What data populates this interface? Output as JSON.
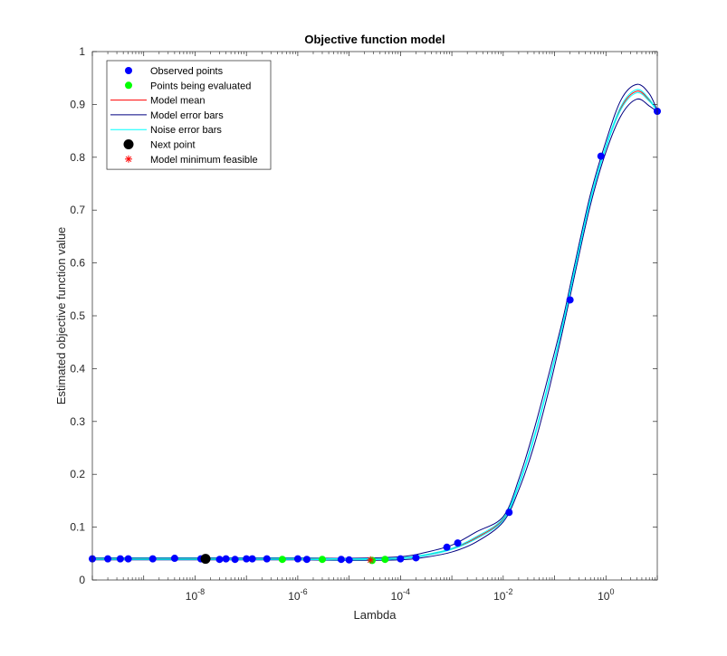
{
  "chart_data": {
    "type": "line",
    "title": "Objective function model",
    "xlabel": "Lambda",
    "ylabel": "Estimated objective function value",
    "xscale": "log",
    "xlim": [
      1e-10,
      10
    ],
    "ylim": [
      0,
      1
    ],
    "yticks": [
      0,
      0.1,
      0.2,
      0.3,
      0.4,
      0.5,
      0.6,
      0.7,
      0.8,
      0.9,
      1
    ],
    "ytick_labels": [
      "0",
      "0.1",
      "0.2",
      "0.3",
      "0.4",
      "0.5",
      "0.6",
      "0.7",
      "0.8",
      "0.9",
      "1"
    ],
    "xticks": [
      {
        "value": 1e-08,
        "base": "10",
        "exp": "-8"
      },
      {
        "value": 1e-06,
        "base": "10",
        "exp": "-6"
      },
      {
        "value": 0.0001,
        "base": "10",
        "exp": "-4"
      },
      {
        "value": 0.01,
        "base": "10",
        "exp": "-2"
      },
      {
        "value": 1,
        "base": "10",
        "exp": "0"
      }
    ],
    "grid": false,
    "legend_position": "top-left",
    "legend": [
      {
        "label": "Observed points",
        "kind": "marker",
        "color": "#0000ff"
      },
      {
        "label": "Points being evaluated",
        "kind": "marker",
        "color": "#00ff00"
      },
      {
        "label": "Model mean",
        "kind": "line",
        "color": "#ff0000"
      },
      {
        "label": "Model error bars",
        "kind": "line",
        "color": "#000080"
      },
      {
        "label": "Noise error bars",
        "kind": "line",
        "color": "#00ffff"
      },
      {
        "label": "Next point",
        "kind": "bigmarker",
        "color": "#000000"
      },
      {
        "label": "Model minimum feasible",
        "kind": "star",
        "color": "#ff0000"
      }
    ],
    "model_mean": [
      [
        1e-10,
        0.04
      ],
      [
        1e-08,
        0.04
      ],
      [
        1e-06,
        0.04
      ],
      [
        1e-05,
        0.039
      ],
      [
        0.0001,
        0.041
      ],
      [
        0.0003,
        0.047
      ],
      [
        0.001,
        0.059
      ],
      [
        0.003,
        0.08
      ],
      [
        0.01,
        0.115
      ],
      [
        0.02,
        0.18
      ],
      [
        0.04,
        0.27
      ],
      [
        0.08,
        0.38
      ],
      [
        0.15,
        0.49
      ],
      [
        0.25,
        0.59
      ],
      [
        0.5,
        0.72
      ],
      [
        1,
        0.82
      ],
      [
        2,
        0.895
      ],
      [
        4,
        0.925
      ],
      [
        7,
        0.908
      ],
      [
        10,
        0.887
      ]
    ],
    "model_upper": [
      [
        1e-10,
        0.042
      ],
      [
        1e-08,
        0.042
      ],
      [
        1e-06,
        0.042
      ],
      [
        1e-05,
        0.041
      ],
      [
        0.0001,
        0.044
      ],
      [
        0.0003,
        0.052
      ],
      [
        0.001,
        0.066
      ],
      [
        0.003,
        0.091
      ],
      [
        0.01,
        0.12
      ],
      [
        0.02,
        0.19
      ],
      [
        0.04,
        0.285
      ],
      [
        0.08,
        0.395
      ],
      [
        0.15,
        0.5
      ],
      [
        0.25,
        0.6
      ],
      [
        0.5,
        0.73
      ],
      [
        1,
        0.83
      ],
      [
        2,
        0.91
      ],
      [
        4,
        0.938
      ],
      [
        7,
        0.92
      ],
      [
        10,
        0.888
      ]
    ],
    "model_lower": [
      [
        1e-10,
        0.038
      ],
      [
        1e-08,
        0.038
      ],
      [
        1e-06,
        0.038
      ],
      [
        1e-05,
        0.037
      ],
      [
        0.0001,
        0.038
      ],
      [
        0.0003,
        0.043
      ],
      [
        0.001,
        0.053
      ],
      [
        0.003,
        0.072
      ],
      [
        0.01,
        0.11
      ],
      [
        0.02,
        0.17
      ],
      [
        0.04,
        0.255
      ],
      [
        0.08,
        0.365
      ],
      [
        0.15,
        0.48
      ],
      [
        0.25,
        0.58
      ],
      [
        0.5,
        0.71
      ],
      [
        1,
        0.81
      ],
      [
        2,
        0.88
      ],
      [
        4,
        0.91
      ],
      [
        7,
        0.897
      ],
      [
        10,
        0.886
      ]
    ],
    "noise_upper": [
      [
        1e-10,
        0.041
      ],
      [
        1e-08,
        0.041
      ],
      [
        1e-06,
        0.041
      ],
      [
        1e-05,
        0.04
      ],
      [
        0.0001,
        0.042
      ],
      [
        0.0003,
        0.048
      ],
      [
        0.001,
        0.06
      ],
      [
        0.003,
        0.082
      ],
      [
        0.01,
        0.117
      ],
      [
        0.02,
        0.182
      ],
      [
        0.04,
        0.272
      ],
      [
        0.08,
        0.382
      ],
      [
        0.15,
        0.492
      ],
      [
        0.25,
        0.592
      ],
      [
        0.5,
        0.722
      ],
      [
        1,
        0.822
      ],
      [
        2,
        0.898
      ],
      [
        4,
        0.928
      ],
      [
        7,
        0.91
      ],
      [
        10,
        0.887
      ]
    ],
    "noise_lower": [
      [
        1e-10,
        0.039
      ],
      [
        1e-08,
        0.039
      ],
      [
        1e-06,
        0.039
      ],
      [
        1e-05,
        0.038
      ],
      [
        0.0001,
        0.04
      ],
      [
        0.0003,
        0.046
      ],
      [
        0.001,
        0.058
      ],
      [
        0.003,
        0.078
      ],
      [
        0.01,
        0.113
      ],
      [
        0.02,
        0.178
      ],
      [
        0.04,
        0.268
      ],
      [
        0.08,
        0.378
      ],
      [
        0.15,
        0.488
      ],
      [
        0.25,
        0.588
      ],
      [
        0.5,
        0.718
      ],
      [
        1,
        0.818
      ],
      [
        2,
        0.892
      ],
      [
        4,
        0.922
      ],
      [
        7,
        0.906
      ],
      [
        10,
        0.887
      ]
    ],
    "observed_points": [
      [
        1e-10,
        0.04
      ],
      [
        2e-10,
        0.04
      ],
      [
        3.5e-10,
        0.04
      ],
      [
        5e-10,
        0.04
      ],
      [
        1.5e-09,
        0.04
      ],
      [
        4e-09,
        0.041
      ],
      [
        1.3e-08,
        0.04
      ],
      [
        3e-08,
        0.039
      ],
      [
        4e-08,
        0.04
      ],
      [
        6e-08,
        0.039
      ],
      [
        1e-07,
        0.04
      ],
      [
        1.3e-07,
        0.04
      ],
      [
        2.5e-07,
        0.04
      ],
      [
        1e-06,
        0.04
      ],
      [
        1.5e-06,
        0.039
      ],
      [
        7e-06,
        0.039
      ],
      [
        1e-05,
        0.038
      ],
      [
        0.0001,
        0.04
      ],
      [
        0.0002,
        0.042
      ],
      [
        0.0008,
        0.062
      ],
      [
        0.0013,
        0.07
      ],
      [
        0.013,
        0.128
      ],
      [
        0.2,
        0.53
      ],
      [
        0.8,
        0.802
      ],
      [
        10,
        0.887
      ]
    ],
    "points_being_evaluated": [
      [
        5e-07,
        0.039
      ],
      [
        3e-06,
        0.039
      ],
      [
        2.8e-05,
        0.037
      ],
      [
        5e-05,
        0.039
      ]
    ],
    "next_point": [
      1.6e-08,
      0.04
    ],
    "model_minimum_feasible": [
      2.6e-05,
      0.038
    ]
  }
}
